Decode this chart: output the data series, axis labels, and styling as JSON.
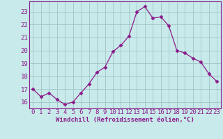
{
  "x": [
    0,
    1,
    2,
    3,
    4,
    5,
    6,
    7,
    8,
    9,
    10,
    11,
    12,
    13,
    14,
    15,
    16,
    17,
    18,
    19,
    20,
    21,
    22,
    23
  ],
  "y": [
    17.0,
    16.4,
    16.7,
    16.2,
    15.8,
    16.0,
    16.7,
    17.4,
    18.3,
    18.7,
    19.9,
    20.4,
    21.1,
    23.0,
    23.4,
    22.5,
    22.6,
    21.9,
    20.0,
    19.8,
    19.4,
    19.1,
    18.2,
    17.6
  ],
  "line_color": "#8b1a8b",
  "marker": "D",
  "marker_size": 2.5,
  "background_color": "#c8eaea",
  "grid_color": "#a0c4c4",
  "xlabel": "Windchill (Refroidissement éolien,°C)",
  "ylim": [
    15.5,
    23.8
  ],
  "xlim": [
    -0.5,
    23.5
  ],
  "yticks": [
    16,
    17,
    18,
    19,
    20,
    21,
    22,
    23
  ],
  "xticks": [
    0,
    1,
    2,
    3,
    4,
    5,
    6,
    7,
    8,
    9,
    10,
    11,
    12,
    13,
    14,
    15,
    16,
    17,
    18,
    19,
    20,
    21,
    22,
    23
  ],
  "tick_color": "#8b1a8b",
  "label_color": "#8b1a8b",
  "label_fontsize": 6.5,
  "tick_fontsize": 6.5
}
